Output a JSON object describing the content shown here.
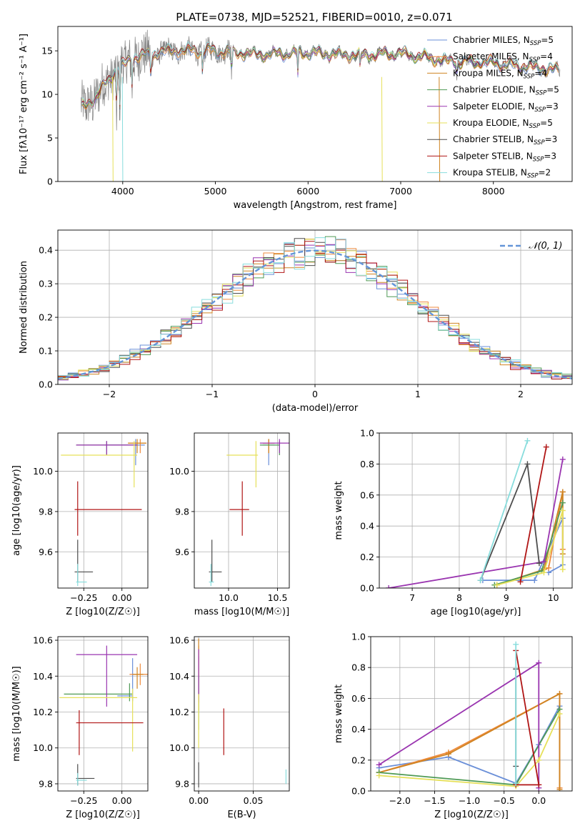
{
  "colors": {
    "series": [
      "#6a8fd8",
      "#ee8a3c",
      "#cf8422",
      "#4f9a55",
      "#9a35b0",
      "#e6e05a",
      "#4d4d4d",
      "#b01515",
      "#88dddd"
    ],
    "series_names": [
      "Chabrier MILES",
      "Salpeter MILES",
      "Kroupa MILES",
      "Chabrier ELODIE",
      "Salpeter ELODIE",
      "Kroupa ELODIE",
      "Chabrier STELIB",
      "Salpeter STELIB",
      "Kroupa STELIB"
    ],
    "grid": "#b0b0b0",
    "gray_spectrum": "#808080",
    "normal_curve": "#6495d8"
  },
  "chart_data": [
    {
      "id": "spectrum",
      "type": "line",
      "title": "PLATE=0738, MJD=52521, FIBERID=0010, z=0.071",
      "xlabel": "wavelength [Angstrom, rest frame]",
      "ylabel": "Flux [fλ10⁻¹⁷ erg cm⁻² s⁻¹ A⁻¹]",
      "xlim": [
        3300,
        8850
      ],
      "ylim": [
        0,
        17.8
      ],
      "xticks": [
        4000,
        5000,
        6000,
        7000,
        8000
      ],
      "yticks": [
        0,
        5,
        10,
        15
      ],
      "legend_position": "top-right",
      "legend": [
        "Chabrier MILES, N_SSP=5",
        "Salpeter MILES, N_SSP=4",
        "Kroupa MILES, N_SSP=4",
        "Chabrier ELODIE, N_SSP=5",
        "Salpeter ELODIE, N_SSP=3",
        "Kroupa ELODIE, N_SSP=5",
        "Chabrier STELIB, N_SSP=3",
        "Salpeter STELIB, N_SSP=3",
        "Kroupa STELIB, N_SSP=2"
      ],
      "data_continuum": [
        [
          3550,
          8.5
        ],
        [
          3700,
          9.5
        ],
        [
          3800,
          11
        ],
        [
          3900,
          12.5
        ],
        [
          4000,
          13.3
        ],
        [
          4100,
          14.2
        ],
        [
          4300,
          14.6
        ],
        [
          4500,
          15
        ],
        [
          5000,
          15
        ],
        [
          5500,
          14.6
        ],
        [
          6000,
          14.8
        ],
        [
          6500,
          14.5
        ],
        [
          7000,
          14.7
        ],
        [
          7500,
          13.8
        ],
        [
          8000,
          13.6
        ],
        [
          8700,
          12.8
        ]
      ],
      "absorption_lines": [
        [
          3934,
          7.5
        ],
        [
          3969,
          8.2
        ],
        [
          4102,
          11
        ],
        [
          4304,
          11.6
        ],
        [
          4861,
          12.8
        ],
        [
          5175,
          11.8
        ],
        [
          5890,
          12.2
        ],
        [
          6563,
          12.6
        ],
        [
          7605,
          12.2
        ]
      ],
      "grid": false
    },
    {
      "id": "residuals",
      "type": "histogram",
      "xlabel": "(data-model)/error",
      "ylabel": "Normed distribution",
      "xlim": [
        -2.5,
        2.5
      ],
      "ylim": [
        0,
        0.46
      ],
      "xticks": [
        -2,
        -1,
        0,
        1,
        2
      ],
      "yticks": [
        0.0,
        0.1,
        0.2,
        0.3,
        0.4
      ],
      "legend": [
        "𝒩(0, 1)"
      ],
      "legend_position": "top-right",
      "bin_width": 0.1,
      "grid": true
    },
    {
      "id": "age-vs-Z",
      "type": "errorbar",
      "xlabel": "Z [log10(Z/Z☉)]",
      "ylabel": "age  [log10(age/yr)]",
      "xlim": [
        -0.42,
        0.17
      ],
      "ylim": [
        9.42,
        10.19
      ],
      "xticks": [
        -0.25,
        0.0
      ],
      "xticklabels": [
        "−0.25",
        "0.00"
      ],
      "yticks": [
        9.6,
        9.8,
        10.0
      ],
      "points": [
        {
          "x": 0.09,
          "y": 10.13,
          "xerr": [
            0.2,
            0.06
          ],
          "yerr": [
            0.1,
            0.03
          ]
        },
        {
          "x": 0.12,
          "y": 10.14,
          "xerr": [
            0.08,
            0.04
          ],
          "yerr": [
            0.05,
            0.02
          ]
        },
        {
          "x": 0.1,
          "y": 10.14,
          "xerr": [
            0.06,
            0.06
          ],
          "yerr": [
            0.05,
            0.02
          ]
        },
        {
          "x": -0.1,
          "y": 10.13,
          "xerr": [
            0.2,
            0.2
          ],
          "yerr": [
            0.05,
            0.02
          ]
        },
        {
          "x": -0.1,
          "y": 10.13,
          "xerr": [
            0.2,
            0.2
          ],
          "yerr": [
            0.05,
            0.02
          ]
        },
        {
          "x": 0.08,
          "y": 10.08,
          "xerr": [
            0.48,
            0.02
          ],
          "yerr": [
            0.16,
            0.07
          ]
        },
        {
          "x": -0.29,
          "y": 9.5,
          "xerr": [
            0.02,
            0.1
          ],
          "yerr": [
            0.05,
            0.16
          ]
        },
        {
          "x": -0.29,
          "y": 9.81,
          "xerr": [
            0.02,
            0.42
          ],
          "yerr": [
            0.13,
            0.14
          ]
        },
        {
          "x": -0.29,
          "y": 9.45,
          "xerr": [
            0.01,
            0.06
          ],
          "yerr": [
            0.02,
            0.09
          ]
        }
      ]
    },
    {
      "id": "age-vs-mass",
      "type": "errorbar",
      "xlabel": "mass [log10(M/M☉)]",
      "ylabel": "",
      "xlim": [
        9.65,
        10.62
      ],
      "ylim": [
        9.42,
        10.19
      ],
      "xticks": [
        10.0,
        10.5
      ],
      "yticks": [
        9.6,
        9.8,
        10.0
      ],
      "points": [
        {
          "x": 10.41,
          "y": 10.13,
          "xerr": [
            0.06,
            0.06
          ],
          "yerr": [
            0.1,
            0.03
          ]
        },
        {
          "x": 10.41,
          "y": 10.14,
          "xerr": [
            0.06,
            0.06
          ],
          "yerr": [
            0.05,
            0.02
          ]
        },
        {
          "x": 10.41,
          "y": 10.14,
          "xerr": [
            0.06,
            0.06
          ],
          "yerr": [
            0.05,
            0.02
          ]
        },
        {
          "x": 10.52,
          "y": 10.13,
          "xerr": [
            0.2,
            0.0
          ],
          "yerr": [
            0.05,
            0.02
          ]
        },
        {
          "x": 10.52,
          "y": 10.14,
          "xerr": [
            0.2,
            0.1
          ],
          "yerr": [
            0.05,
            0.02
          ]
        },
        {
          "x": 10.28,
          "y": 10.08,
          "xerr": [
            0.3,
            0.02
          ],
          "yerr": [
            0.16,
            0.07
          ]
        },
        {
          "x": 9.83,
          "y": 9.5,
          "xerr": [
            0.03,
            0.1
          ],
          "yerr": [
            0.05,
            0.16
          ]
        },
        {
          "x": 10.14,
          "y": 9.81,
          "xerr": [
            0.13,
            0.07
          ],
          "yerr": [
            0.13,
            0.14
          ]
        },
        {
          "x": 9.82,
          "y": 9.45,
          "xerr": [
            0.02,
            0.03
          ],
          "yerr": [
            0.02,
            0.09
          ]
        }
      ]
    },
    {
      "id": "weight-vs-age",
      "type": "line",
      "xlabel": "age  [log10(age/yr)]",
      "ylabel": "mass weight",
      "xlim": [
        6.3,
        10.4
      ],
      "ylim": [
        0,
        1
      ],
      "xticks": [
        7,
        8,
        9,
        10
      ],
      "yticks": [
        0.0,
        0.2,
        0.4,
        0.6,
        0.8,
        1.0
      ],
      "grid": true,
      "series": [
        {
          "x": [
            8.5,
            9.6,
            10.2,
            10.2,
            9.9
          ],
          "y": [
            0.05,
            0.05,
            0.45,
            0.15,
            0.1
          ]
        },
        {
          "x": [
            8.8,
            9.9,
            10.2,
            10.2
          ],
          "y": [
            0.02,
            0.13,
            0.62,
            0.25
          ]
        },
        {
          "x": [
            8.8,
            9.8,
            10.2,
            10.2
          ],
          "y": [
            0.02,
            0.12,
            0.62,
            0.22
          ]
        },
        {
          "x": [
            8.75,
            9.75,
            10.2
          ],
          "y": [
            0.02,
            0.11,
            0.55
          ]
        },
        {
          "x": [
            6.5,
            9.8,
            10.2
          ],
          "y": [
            0.0,
            0.17,
            0.83
          ]
        },
        {
          "x": [
            8.8,
            9.8,
            10.2,
            10.2
          ],
          "y": [
            0.02,
            0.1,
            0.5,
            0.12
          ]
        },
        {
          "x": [
            8.45,
            9.45,
            9.7
          ],
          "y": [
            0.05,
            0.8,
            0.16
          ]
        },
        {
          "x": [
            9.3,
            9.85
          ],
          "y": [
            0.04,
            0.91
          ]
        },
        {
          "x": [
            8.45,
            9.45
          ],
          "y": [
            0.05,
            0.95
          ]
        }
      ]
    },
    {
      "id": "mass-vs-Z",
      "type": "errorbar",
      "xlabel": "Z [log10(Z/Z☉)]",
      "ylabel": "mass [log10(M/M☉)]",
      "xlim": [
        -0.42,
        0.17
      ],
      "ylim": [
        9.76,
        10.62
      ],
      "xticks": [
        -0.25,
        0.0
      ],
      "xticklabels": [
        "−0.25",
        "0.00"
      ],
      "yticks": [
        9.8,
        10.0,
        10.2,
        10.4,
        10.6
      ],
      "points": [
        {
          "x": 0.07,
          "y": 10.29,
          "xerr": [
            0.1,
            0.0
          ],
          "yerr": [
            0.03,
            0.21
          ]
        },
        {
          "x": 0.12,
          "y": 10.41,
          "xerr": [
            0.07,
            0.05
          ],
          "yerr": [
            0.06,
            0.06
          ]
        },
        {
          "x": 0.1,
          "y": 10.41,
          "xerr": [
            0.03,
            0.04
          ],
          "yerr": [
            0.08,
            0.04
          ]
        },
        {
          "x": 0.05,
          "y": 10.3,
          "xerr": [
            0.43,
            0.02
          ],
          "yerr": [
            0.04,
            0.06
          ]
        },
        {
          "x": -0.1,
          "y": 10.52,
          "xerr": [
            0.2,
            0.2
          ],
          "yerr": [
            0.29,
            0.05
          ]
        },
        {
          "x": 0.07,
          "y": 10.28,
          "xerr": [
            0.48,
            0.03
          ],
          "yerr": [
            0.3,
            0.05
          ]
        },
        {
          "x": -0.29,
          "y": 9.83,
          "xerr": [
            0.01,
            0.11
          ],
          "yerr": [
            0.04,
            0.08
          ]
        },
        {
          "x": -0.28,
          "y": 10.14,
          "xerr": [
            0.02,
            0.42
          ],
          "yerr": [
            0.18,
            0.07
          ]
        },
        {
          "x": -0.29,
          "y": 9.82,
          "xerr": [
            0.01,
            0.06
          ],
          "yerr": [
            0.03,
            0.04
          ]
        }
      ]
    },
    {
      "id": "mass-vs-EBV",
      "type": "errorbar",
      "xlabel": "E(B-V)",
      "ylabel": "",
      "xlim": [
        -0.004,
        0.083
      ],
      "ylim": [
        9.76,
        10.62
      ],
      "xticks": [
        0.0,
        0.05
      ],
      "xticklabels": [
        "0.00",
        "0.05"
      ],
      "yticks": [
        9.8,
        10.0,
        10.2,
        10.4,
        10.6
      ],
      "points": [
        {
          "x": 0.0,
          "y": 10.41,
          "xerr": [
            0.0,
            0.0
          ],
          "yerr": [
            0.15,
            0.1
          ]
        },
        {
          "x": 0.0,
          "y": 10.41,
          "xerr": [
            0.0,
            0.0
          ],
          "yerr": [
            0.2,
            0.16
          ]
        },
        {
          "x": 0.0,
          "y": 10.41,
          "xerr": [
            0.0,
            0.0
          ],
          "yerr": [
            0.2,
            0.2
          ]
        },
        {
          "x": 0.0,
          "y": 10.3,
          "xerr": [
            0.0,
            0.0
          ],
          "yerr": [
            0.2,
            0.1
          ]
        },
        {
          "x": 0.0,
          "y": 10.45,
          "xerr": [
            0.0,
            0.0
          ],
          "yerr": [
            0.2,
            0.1
          ]
        },
        {
          "x": 0.0,
          "y": 10.2,
          "xerr": [
            0.0,
            0.0
          ],
          "yerr": [
            0.2,
            0.1
          ]
        },
        {
          "x": 0.0,
          "y": 9.85,
          "xerr": [
            0.0,
            0.0
          ],
          "yerr": [
            0.07,
            0.07
          ]
        },
        {
          "x": 0.023,
          "y": 10.1,
          "xerr": [
            0.0,
            0.0
          ],
          "yerr": [
            0.14,
            0.12
          ]
        },
        {
          "x": 0.08,
          "y": 9.83,
          "xerr": [
            0.0,
            0.0
          ],
          "yerr": [
            0.03,
            0.05
          ]
        }
      ]
    },
    {
      "id": "weight-vs-Z",
      "type": "line",
      "xlabel": "Z [log10(Z/Z☉)]",
      "ylabel": "mass weight",
      "xlim": [
        -2.42,
        0.48
      ],
      "ylim": [
        0,
        1
      ],
      "xticks": [
        -2.0,
        -1.5,
        -1.0,
        -0.5,
        0.0
      ],
      "xticklabels": [
        "−2.0",
        "−1.5",
        "−1.0",
        "−0.5",
        "0.0"
      ],
      "yticks": [
        0.0,
        0.2,
        0.4,
        0.6,
        0.8,
        1.0
      ],
      "grid": true,
      "series": [
        {
          "x": [
            -2.3,
            -1.3,
            -0.33,
            0.0,
            0.3
          ],
          "y": [
            0.15,
            0.22,
            0.05,
            0.3,
            0.55
          ]
        },
        {
          "x": [
            -2.3,
            -1.3,
            0.3,
            0.3
          ],
          "y": [
            0.12,
            0.25,
            0.63,
            0.02
          ]
        },
        {
          "x": [
            -2.3,
            -1.3,
            0.3,
            0.3
          ],
          "y": [
            0.12,
            0.24,
            0.63,
            0.01
          ]
        },
        {
          "x": [
            -2.3,
            -0.33,
            0.3
          ],
          "y": [
            0.12,
            0.04,
            0.53
          ]
        },
        {
          "x": [
            -2.3,
            0.0,
            0.0
          ],
          "y": [
            0.17,
            0.83,
            0.02
          ]
        },
        {
          "x": [
            -2.3,
            -0.33,
            0.0,
            0.3
          ],
          "y": [
            0.1,
            0.03,
            0.2,
            0.5
          ]
        },
        {
          "x": [
            -0.33,
            -0.33,
            -0.33
          ],
          "y": [
            0.05,
            0.79,
            0.16
          ]
        },
        {
          "x": [
            -0.33,
            0.0,
            -0.33
          ],
          "y": [
            0.04,
            0.04,
            0.91
          ]
        },
        {
          "x": [
            -0.33,
            -0.33
          ],
          "y": [
            0.05,
            0.95
          ]
        }
      ]
    }
  ]
}
